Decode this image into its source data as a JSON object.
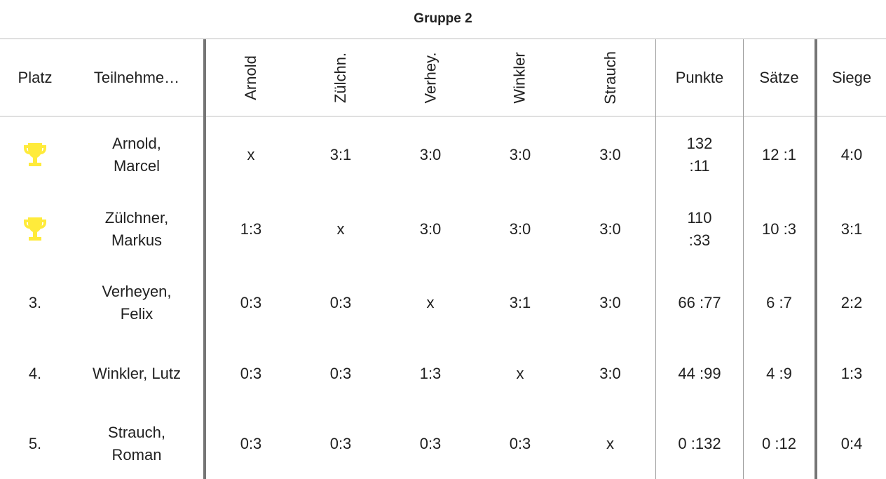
{
  "group_title": "Gruppe 2",
  "headers": {
    "platz": "Platz",
    "teilnehmer": "Teilnehme…",
    "opponents": [
      "Arnold",
      "Zülchn.",
      "Verhey.",
      "Winkler",
      "Strauch"
    ],
    "punkte": "Punkte",
    "saetze": "Sätze",
    "siege": "Siege"
  },
  "trophy_color": "#ffeb3b",
  "rows": [
    {
      "platz": "",
      "trophy": true,
      "name": "Arnold, Marcel",
      "results": [
        "x",
        "3:1",
        "3:0",
        "3:0",
        "3:0"
      ],
      "punkte": "132 :11",
      "saetze": "12 :1",
      "siege": "4:0"
    },
    {
      "platz": "",
      "trophy": true,
      "name": "Zülchner, Markus",
      "results": [
        "1:3",
        "x",
        "3:0",
        "3:0",
        "3:0"
      ],
      "punkte": "110 :33",
      "saetze": "10 :3",
      "siege": "3:1"
    },
    {
      "platz": "3.",
      "trophy": false,
      "name": "Verheyen, Felix",
      "results": [
        "0:3",
        "0:3",
        "x",
        "3:1",
        "3:0"
      ],
      "punkte": "66 :77",
      "saetze": "6 :7",
      "siege": "2:2"
    },
    {
      "platz": "4.",
      "trophy": false,
      "name": "Winkler, Lutz",
      "results": [
        "0:3",
        "0:3",
        "1:3",
        "x",
        "3:0"
      ],
      "punkte": "44 :99",
      "saetze": "4 :9",
      "siege": "1:3"
    },
    {
      "platz": "5.",
      "trophy": false,
      "name": "Strauch, Roman",
      "results": [
        "0:3",
        "0:3",
        "0:3",
        "0:3",
        "x"
      ],
      "punkte": "0 :132",
      "saetze": "0 :12",
      "siege": "0:4"
    }
  ]
}
